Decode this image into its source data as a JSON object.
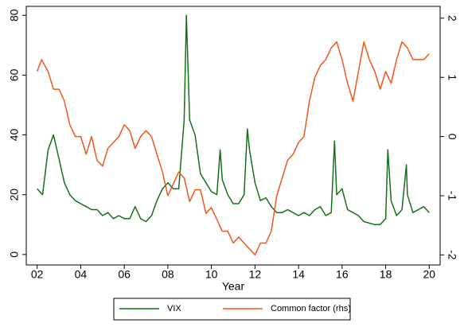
{
  "chart_data": {
    "type": "line",
    "x_label": "Year",
    "xlim": [
      2001.5,
      2020.5
    ],
    "xticks": [
      {
        "value": 2002,
        "label": "02"
      },
      {
        "value": 2004,
        "label": "04"
      },
      {
        "value": 2006,
        "label": "06"
      },
      {
        "value": 2008,
        "label": "08"
      },
      {
        "value": 2010,
        "label": "10"
      },
      {
        "value": 2012,
        "label": "12"
      },
      {
        "value": 2014,
        "label": "14"
      },
      {
        "value": 2016,
        "label": "16"
      },
      {
        "value": 2018,
        "label": "18"
      },
      {
        "value": 2020,
        "label": "20"
      }
    ],
    "ylim": [
      -3.5,
      83
    ],
    "yticks": [
      0,
      20,
      40,
      60,
      80
    ],
    "y2lim": [
      -2.17,
      2.2
    ],
    "y2ticks": [
      -2,
      -1,
      0,
      1,
      2
    ],
    "grid": false,
    "legend": "bottom",
    "series": [
      {
        "name": "VIX",
        "color": "#17701c",
        "x": [
          2002,
          2002.25,
          2002.5,
          2002.75,
          2003,
          2003.25,
          2003.5,
          2003.75,
          2004,
          2004.25,
          2004.5,
          2004.75,
          2005,
          2005.25,
          2005.5,
          2005.75,
          2006,
          2006.25,
          2006.5,
          2006.75,
          2007,
          2007.25,
          2007.5,
          2007.75,
          2008,
          2008.25,
          2008.5,
          2008.75,
          2008.85,
          2009,
          2009.25,
          2009.5,
          2009.75,
          2010,
          2010.25,
          2010.4,
          2010.5,
          2010.75,
          2011,
          2011.25,
          2011.5,
          2011.65,
          2011.75,
          2012,
          2012.25,
          2012.5,
          2012.75,
          2013,
          2013.25,
          2013.5,
          2013.75,
          2014,
          2014.25,
          2014.5,
          2014.75,
          2015,
          2015.25,
          2015.5,
          2015.65,
          2015.75,
          2016,
          2016.25,
          2016.5,
          2016.75,
          2017,
          2017.5,
          2017.75,
          2018,
          2018.1,
          2018.25,
          2018.5,
          2018.75,
          2018.95,
          2019,
          2019.25,
          2019.5,
          2019.75,
          2020
        ],
        "values": [
          22,
          20,
          35,
          40,
          32,
          24,
          20,
          18,
          17,
          16,
          15,
          15,
          13,
          14,
          12,
          13,
          12,
          12,
          16,
          12,
          11,
          13,
          18,
          22,
          24,
          22,
          22,
          45,
          80,
          45,
          40,
          27,
          24,
          21,
          20,
          35,
          25,
          20,
          17,
          17,
          20,
          42,
          35,
          24,
          18,
          19,
          16,
          14,
          14,
          15,
          14,
          13,
          14,
          13,
          15,
          16,
          13,
          14,
          38,
          20,
          22,
          15,
          14,
          13,
          11,
          10,
          10,
          12,
          35,
          18,
          13,
          15,
          30,
          20,
          14,
          15,
          16,
          14
        ]
      },
      {
        "name": "Common factor (rhs)",
        "color": "#f0561c",
        "axis": "y2",
        "x": [
          2002,
          2002.2,
          2002.5,
          2002.75,
          2003,
          2003.25,
          2003.5,
          2003.75,
          2004,
          2004.25,
          2004.5,
          2004.75,
          2005,
          2005.25,
          2005.5,
          2005.75,
          2006,
          2006.25,
          2006.5,
          2006.75,
          2007,
          2007.25,
          2007.5,
          2007.75,
          2008,
          2008.25,
          2008.5,
          2008.75,
          2009,
          2009.25,
          2009.5,
          2009.75,
          2010,
          2010.25,
          2010.5,
          2010.75,
          2011,
          2011.25,
          2011.5,
          2011.75,
          2012,
          2012.25,
          2012.5,
          2012.75,
          2013,
          2013.25,
          2013.5,
          2013.75,
          2014,
          2014.25,
          2014.5,
          2014.75,
          2015,
          2015.25,
          2015.5,
          2015.75,
          2016,
          2016.25,
          2016.5,
          2016.75,
          2017,
          2017.25,
          2017.5,
          2017.75,
          2018,
          2018.25,
          2018.5,
          2018.75,
          2019,
          2019.25,
          2019.5,
          2019.75,
          2020
        ],
        "values": [
          1.1,
          1.3,
          1.1,
          0.8,
          0.8,
          0.6,
          0.2,
          0.0,
          0.0,
          -0.3,
          0.0,
          -0.4,
          -0.5,
          -0.2,
          -0.1,
          0.0,
          0.2,
          0.1,
          -0.2,
          0.0,
          0.1,
          0.0,
          -0.3,
          -0.6,
          -1.0,
          -0.8,
          -0.6,
          -0.7,
          -1.1,
          -0.9,
          -0.9,
          -1.3,
          -1.2,
          -1.4,
          -1.6,
          -1.6,
          -1.8,
          -1.7,
          -1.8,
          -1.9,
          -2.0,
          -1.8,
          -1.8,
          -1.6,
          -1.0,
          -0.7,
          -0.4,
          -0.3,
          -0.1,
          0.0,
          0.6,
          1.0,
          1.2,
          1.3,
          1.5,
          1.6,
          1.3,
          0.9,
          0.6,
          1.1,
          1.6,
          1.3,
          1.1,
          0.8,
          1.1,
          0.9,
          1.3,
          1.6,
          1.5,
          1.3,
          1.3,
          1.3,
          1.4
        ]
      }
    ]
  }
}
